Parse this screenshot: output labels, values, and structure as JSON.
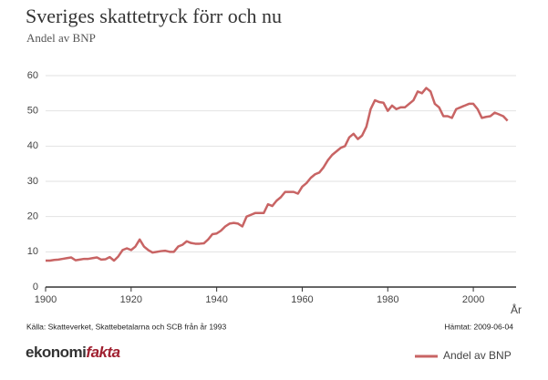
{
  "chart_data": {
    "type": "line",
    "title": "Sveriges skattetryck förr och nu",
    "subtitle": "Andel av BNP",
    "x_label": "År",
    "source": "Källa: Skatteverket, Skattebetalarna och SCB från år 1993",
    "retrieved": "Hämtat: 2009-06-04",
    "logo": {
      "first": "ekonomi",
      "second": "fakta"
    },
    "x": [
      1900,
      1901,
      1902,
      1903,
      1904,
      1905,
      1906,
      1907,
      1908,
      1909,
      1910,
      1911,
      1912,
      1913,
      1914,
      1915,
      1916,
      1917,
      1918,
      1919,
      1920,
      1921,
      1922,
      1923,
      1924,
      1925,
      1926,
      1927,
      1928,
      1929,
      1930,
      1931,
      1932,
      1933,
      1934,
      1935,
      1936,
      1937,
      1938,
      1939,
      1940,
      1941,
      1942,
      1943,
      1944,
      1945,
      1946,
      1947,
      1948,
      1949,
      1950,
      1951,
      1952,
      1953,
      1954,
      1955,
      1956,
      1957,
      1958,
      1959,
      1960,
      1961,
      1962,
      1963,
      1964,
      1965,
      1966,
      1967,
      1968,
      1969,
      1970,
      1971,
      1972,
      1973,
      1974,
      1975,
      1976,
      1977,
      1978,
      1979,
      1980,
      1981,
      1982,
      1983,
      1984,
      1985,
      1986,
      1987,
      1988,
      1989,
      1990,
      1991,
      1992,
      1993,
      1994,
      1995,
      1996,
      1997,
      1998,
      1999,
      2000,
      2001,
      2002,
      2003,
      2004,
      2005,
      2006,
      2007,
      2008
    ],
    "series": [
      {
        "name": "Andel av BNP",
        "color": "#c86464",
        "values": [
          7.5,
          7.5,
          7.7,
          7.8,
          8,
          8.2,
          8.4,
          7.6,
          7.8,
          8,
          8,
          8.2,
          8.4,
          7.8,
          7.9,
          8.5,
          7.5,
          8.7,
          10.5,
          11,
          10.5,
          11.5,
          13.5,
          11.5,
          10.5,
          9.8,
          10,
          10.2,
          10.3,
          10,
          10,
          11.5,
          12,
          13,
          12.5,
          12.3,
          12.3,
          12.4,
          13.5,
          15,
          15.2,
          16,
          17.2,
          18,
          18.2,
          18,
          17.2,
          20,
          20.5,
          21,
          21,
          21,
          23.5,
          23,
          24.5,
          25.5,
          27,
          27,
          27,
          26.5,
          28.5,
          29.5,
          31,
          32,
          32.5,
          34,
          36,
          37.5,
          38.5,
          39.5,
          40,
          42.5,
          43.5,
          42,
          43,
          45.5,
          50.5,
          53,
          52.5,
          52.3,
          50,
          51.5,
          50.5,
          51,
          51,
          52,
          53,
          55.5,
          55,
          56.5,
          55.5,
          52,
          51,
          48.5,
          48.5,
          48,
          50.5,
          51,
          51.5,
          52,
          52,
          50.5,
          48,
          48.3,
          48.5,
          49.5,
          49,
          48.5,
          47.2
        ]
      }
    ],
    "xlim": [
      1900,
      2010
    ],
    "xticks": [
      1900,
      1920,
      1940,
      1960,
      1980,
      2000
    ],
    "ylim": [
      0,
      60
    ],
    "yticks": [
      0,
      10,
      20,
      30,
      40,
      50,
      60
    ],
    "grid": true,
    "legend": "bottom-right"
  }
}
